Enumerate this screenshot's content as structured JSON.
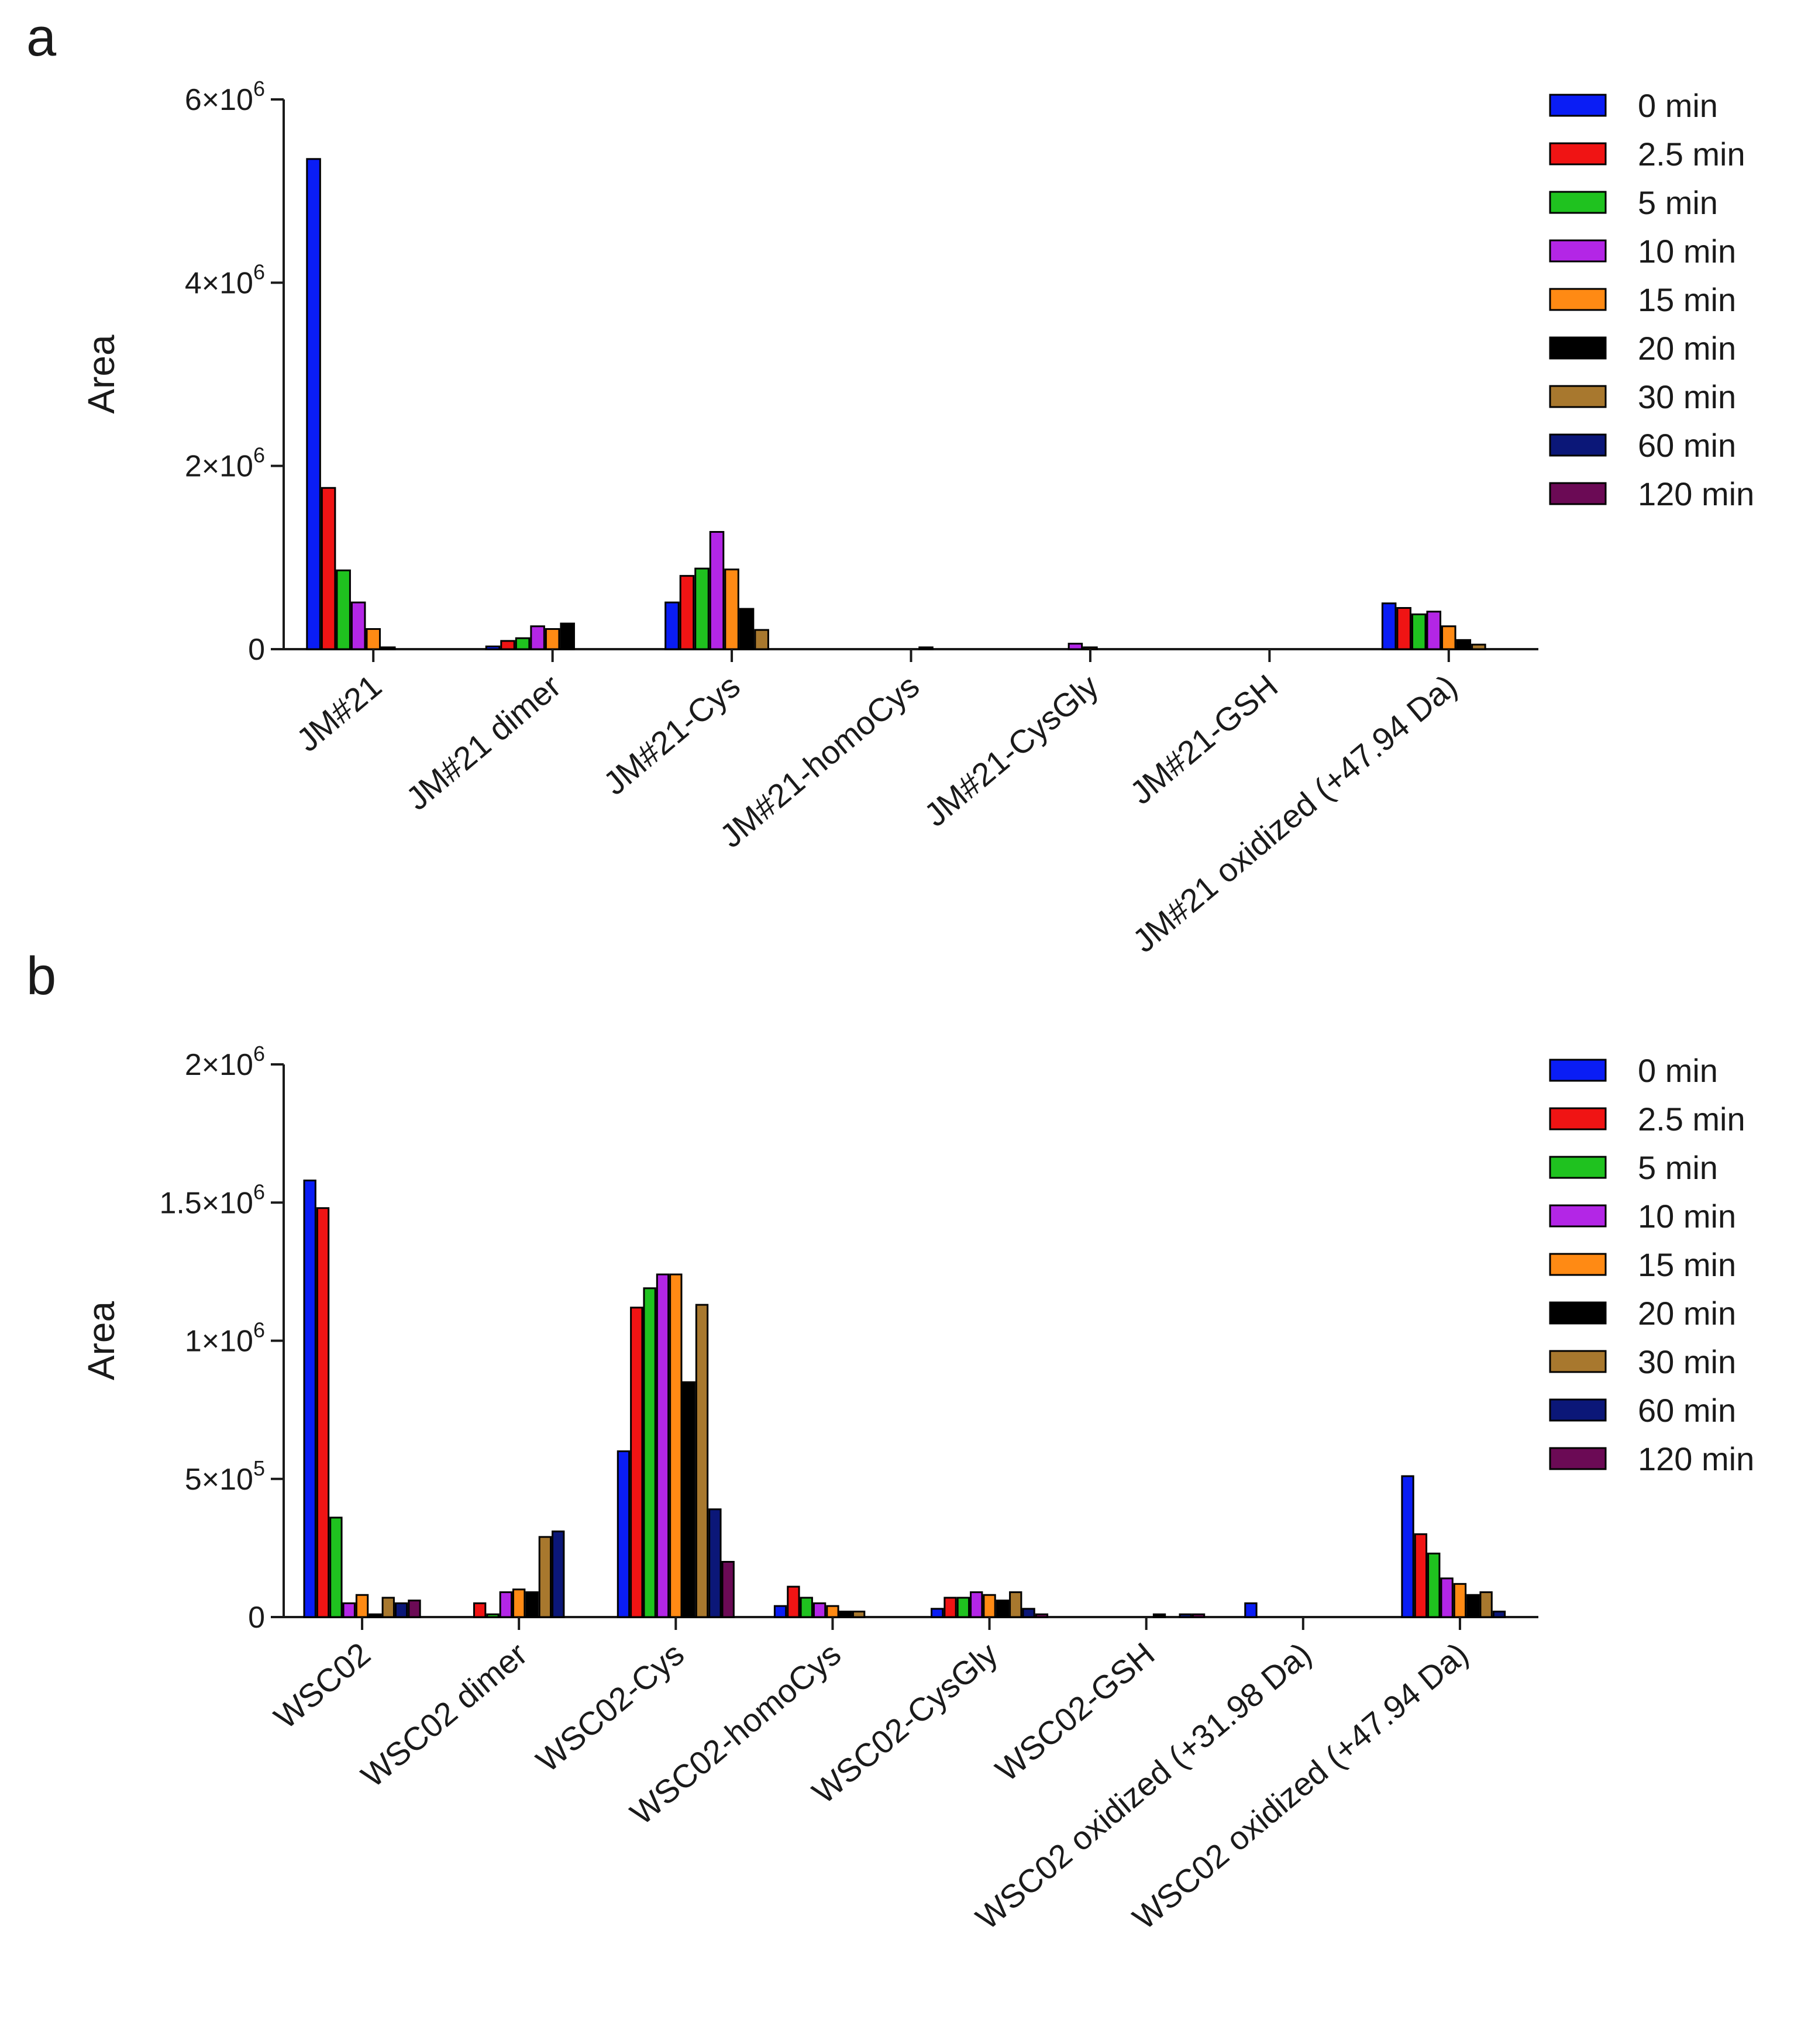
{
  "legend": [
    {
      "name": "0 min",
      "color": "#0a1df5"
    },
    {
      "name": "2.5 min",
      "color": "#f01414"
    },
    {
      "name": "5 min",
      "color": "#1fc21f"
    },
    {
      "name": "10 min",
      "color": "#b326e6"
    },
    {
      "name": "15 min",
      "color": "#ff8a14"
    },
    {
      "name": "20 min",
      "color": "#000000"
    },
    {
      "name": "30 min",
      "color": "#a8782e"
    },
    {
      "name": "60 min",
      "color": "#0b1778"
    },
    {
      "name": "120 min",
      "color": "#6b0a55"
    }
  ],
  "chart_data": [
    {
      "panel": "a",
      "type": "bar",
      "ylabel": "Area",
      "ylim": [
        0,
        6000000
      ],
      "yticks": [
        {
          "value": 0,
          "mant": "0",
          "exp": ""
        },
        {
          "value": 2000000,
          "mant": "2×10",
          "exp": "6"
        },
        {
          "value": 4000000,
          "mant": "4×10",
          "exp": "6"
        },
        {
          "value": 6000000,
          "mant": "6×10",
          "exp": "6"
        }
      ],
      "categories": [
        "JM#21",
        "JM#21 dimer",
        "JM#21-Cys",
        "JM#21-homoCys",
        "JM#21-CysGly",
        "JM#21-GSH",
        "JM#21 oxidized (+47.94 Da)"
      ],
      "series": [
        {
          "name": "0 min",
          "values": [
            5350000,
            30000,
            510000,
            0,
            0,
            0,
            500000
          ]
        },
        {
          "name": "2.5 min",
          "values": [
            1760000,
            90000,
            800000,
            0,
            0,
            0,
            450000
          ]
        },
        {
          "name": "5 min",
          "values": [
            860000,
            120000,
            880000,
            0,
            0,
            0,
            380000
          ]
        },
        {
          "name": "10 min",
          "values": [
            510000,
            250000,
            1280000,
            0,
            60000,
            0,
            410000
          ]
        },
        {
          "name": "15 min",
          "values": [
            220000,
            220000,
            870000,
            0,
            20000,
            0,
            250000
          ]
        },
        {
          "name": "20 min",
          "values": [
            20000,
            280000,
            440000,
            20000,
            0,
            0,
            100000
          ]
        },
        {
          "name": "30 min",
          "values": [
            0,
            0,
            210000,
            0,
            0,
            0,
            50000
          ]
        },
        {
          "name": "60 min",
          "values": [
            0,
            0,
            0,
            0,
            0,
            0,
            0
          ]
        },
        {
          "name": "120 min",
          "values": [
            0,
            0,
            0,
            0,
            0,
            0,
            0
          ]
        }
      ]
    },
    {
      "panel": "b",
      "type": "bar",
      "ylabel": "Area",
      "ylim": [
        0,
        2000000
      ],
      "yticks": [
        {
          "value": 0,
          "mant": "0",
          "exp": ""
        },
        {
          "value": 500000,
          "mant": "5×10",
          "exp": "5"
        },
        {
          "value": 1000000,
          "mant": "1×10",
          "exp": "6"
        },
        {
          "value": 1500000,
          "mant": "1.5×10",
          "exp": "6"
        },
        {
          "value": 2000000,
          "mant": "2×10",
          "exp": "6"
        }
      ],
      "categories": [
        "WSC02",
        "WSC02 dimer",
        "WSC02-Cys",
        "WSC02-homoCys",
        "WSC02-CysGly",
        "WSC02-GSH",
        "WSC02 oxidized (+31.98 Da)",
        "WSC02 oxidized (+47.94 Da)"
      ],
      "series": [
        {
          "name": "0 min",
          "values": [
            1580000,
            0,
            600000,
            40000,
            30000,
            0,
            50000,
            510000
          ]
        },
        {
          "name": "2.5 min",
          "values": [
            1480000,
            50000,
            1120000,
            110000,
            70000,
            0,
            0,
            300000
          ]
        },
        {
          "name": "5 min",
          "values": [
            360000,
            10000,
            1190000,
            70000,
            70000,
            0,
            0,
            230000
          ]
        },
        {
          "name": "10 min",
          "values": [
            50000,
            90000,
            1240000,
            50000,
            90000,
            0,
            0,
            140000
          ]
        },
        {
          "name": "15 min",
          "values": [
            80000,
            100000,
            1240000,
            40000,
            80000,
            0,
            0,
            120000
          ]
        },
        {
          "name": "20 min",
          "values": [
            10000,
            90000,
            850000,
            20000,
            60000,
            10000,
            0,
            80000
          ]
        },
        {
          "name": "30 min",
          "values": [
            70000,
            290000,
            1130000,
            20000,
            90000,
            0,
            0,
            90000
          ]
        },
        {
          "name": "60 min",
          "values": [
            50000,
            310000,
            390000,
            0,
            30000,
            10000,
            0,
            20000
          ]
        },
        {
          "name": "120 min",
          "values": [
            60000,
            0,
            200000,
            0,
            10000,
            10000,
            0,
            0
          ]
        }
      ]
    }
  ],
  "panel_labels": {
    "a": "a",
    "b": "b"
  }
}
